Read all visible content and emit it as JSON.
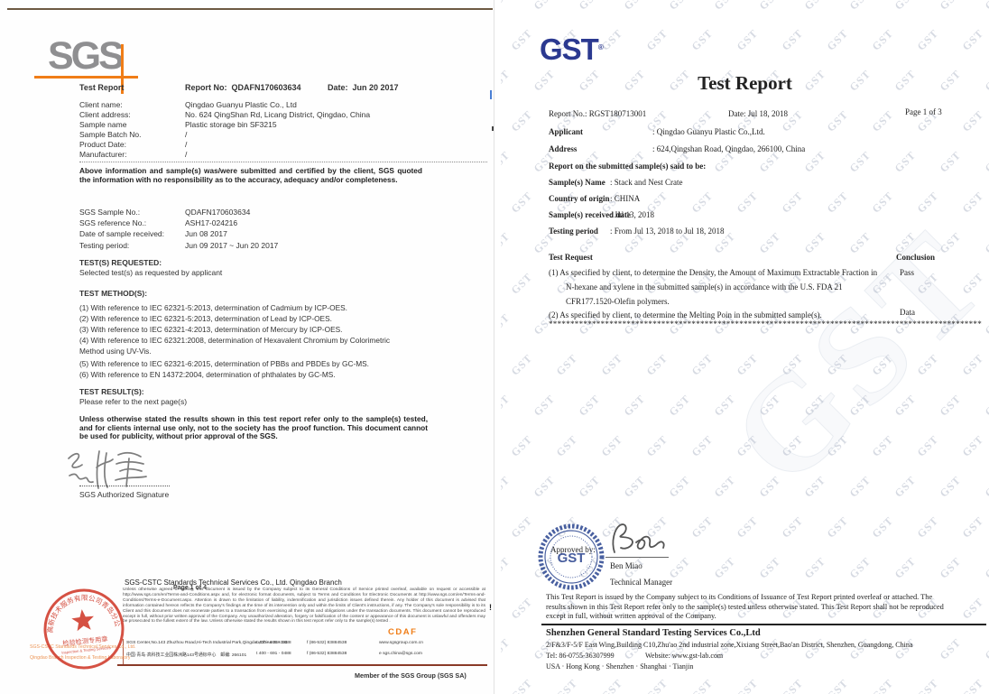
{
  "colors": {
    "sgs_gray": "#8f8f91",
    "sgs_orange": "#f07d17",
    "gst_navy": "#2b3990",
    "stamp_red": "#d03a2a",
    "stamp_blue": "#2a4590"
  },
  "left_report": {
    "logo_text": "SGS",
    "title": "Test Report",
    "report_no_label": "Report No:",
    "report_no": "QDAFN170603634",
    "date_label": "Date:",
    "date_value": "Jun 20 2017",
    "client_rows": [
      {
        "label": "Client name:",
        "value": "Qingdao Guanyu Plastic Co., Ltd"
      },
      {
        "label": "Client address:",
        "value": "No. 624 QingShan Rd, Licang District, Qingdao, China"
      },
      {
        "label": "Sample name",
        "value": "Plastic storage bin SF3215"
      },
      {
        "label": "Sample Batch No.",
        "value": "/"
      },
      {
        "label": "Product Date:",
        "value": "/"
      },
      {
        "label": "Manufacturer:",
        "value": "/"
      }
    ],
    "submission_note": "Above information and sample(s) was/were submitted and certified by the client, SGS quoted the information with no responsibility as to the accuracy, adequacy and/or completeness.",
    "sample_rows": [
      {
        "label": "SGS Sample No.:",
        "value": "QDAFN170603634"
      },
      {
        "label": "SGS reference No.:",
        "value": "ASH17-024216"
      },
      {
        "label": "Date of sample received:",
        "value": "Jun 08 2017"
      },
      {
        "label": "Testing period:",
        "value": "Jun 09 2017 ~ Jun 20 2017"
      }
    ],
    "tests_requested_heading": "TEST(S) REQUESTED:",
    "tests_requested_body": "Selected test(s) as requested by applicant",
    "test_method_heading": "TEST METHOD(S):",
    "method_lines": [
      "(1) With reference to IEC 62321-5:2013, determination of Cadmium by ICP-OES.",
      "(2) With reference to IEC 62321-5:2013, determination of Lead by ICP-OES.",
      "(3) With reference to IEC 62321-4:2013, determination of Mercury by ICP-OES.",
      "(4) With reference to IEC 62321:2008, determination of Hexavalent Chromium by Colorimetric",
      "Method using UV-Vis.",
      "(5) With reference to IEC 62321-6:2015, determination of PBBs and PBDEs by GC-MS.",
      "(6) With reference to EN 14372:2004, determination of phthalates by GC-MS."
    ],
    "test_result_heading": "TEST RESULT(S):",
    "test_result_body": "Please refer to the next page(s)",
    "statement": "Unless otherwise stated the results shown in this test report refer only to the sample(s) tested, and for clients internal use only, not to the society has the proof function. This document cannot be used for publicity, without prior approval of the SGS.",
    "signature_caption": "SGS Authorized Signature",
    "stamp": {
      "ring_text": "高新技术服务有限公司青岛分公司",
      "banner": "检验检测专用章",
      "subtitle": "Inspection & Testing Services"
    },
    "footer": {
      "company": "SGS-CSTC Standards Technical Services Co., Ltd. Qingdao Branch",
      "page_overlay": "Page 1 of 4",
      "terms": "Unless otherwise agreed in writing, this document is issued by the Company subject to its General Conditions of Service printed overleaf, available on request or accessible at http://www.sgs.com/en/Terms-and-Conditions.aspx and, for electronic format documents, subject to Terms and Conditions for Electronic Documents at http://www.sgs.com/en/Terms-and-Conditions/Terms-e-Document.aspx. Attention is drawn to the limitation of liability, indemnification and jurisdiction issues defined therein. Any holder of this document is advised that information contained hereon reflects the Company's findings at the time of its intervention only and within the limits of Client's instructions, if any. The Company's sole responsibility is to its Client and this document does not exonerate parties to a transaction from exercising all their rights and obligations under the transaction documents. This document cannot be reproduced except in full, without prior written approval of the Company. Any unauthorized alteration, forgery or falsification of the content or appearance of this document is unlawful and offenders may be prosecuted to the fullest extent of the law. Unless otherwise stated the results shown in this test report refer only to the sample(s) tested .",
      "code": "CDAF",
      "address_en": "SGS Center,No.143 Zhuzhou Road,Hi-Tech Industrial Park,Qingdao,China  266101",
      "address_cn": "中国·青岛·高科技工业园株洲路143号通标中心　邮编: 266101",
      "phone": "t 400 - 691 - 0488",
      "fax": "f (86-532) 83884538",
      "web": "www.sgsgroup.com.cn",
      "email": "e sgs.china@sgs.com",
      "stamp_company_line1": "SGS-CSTC Standards Technical Services Co., Ltd.",
      "stamp_company_line2": "Qingdao Branch Inspection & Testing Laboratory",
      "member_line": "Member of the SGS Group (SGS SA)"
    },
    "edge_artifact": "!"
  },
  "right_report": {
    "logo_text": "GST",
    "logo_reg": "®",
    "watermark_text": "GST",
    "title": "Test Report",
    "report_no_label": "Report No.:",
    "report_no": "RGST180713001",
    "date_label": "Date:",
    "date_value": "Jul  18,  2018",
    "page_label": "Page 1 of 3",
    "info_rows": [
      {
        "label": "Applicant",
        "value": ": Qingdao Guanyu Plastic Co.,Ltd."
      },
      {
        "label": "Address",
        "value": ": 624,Qingshan Road, Qingdao, 266100, China"
      }
    ],
    "said_to_be": "Report on the submitted sample(s) said to be:",
    "sample_rows": [
      {
        "label": "Sample(s) Name",
        "value": ": Stack and Nest Crate"
      },
      {
        "label": "Country of origin",
        "value": ": CHINA"
      },
      {
        "label": "Sample(s) received date",
        "value": ": Jul 13, 2018"
      },
      {
        "label": "Testing period",
        "value": ": From Jul 13, 2018 to Jul 18, 2018"
      }
    ],
    "test_request_heading": "Test Request",
    "conclusion_heading": "Conclusion",
    "requests": [
      {
        "lines": [
          "(1)   As specified by client, to determine the Density, the Amount of Maximum Extractable Fraction in",
          "N-hexane and xylene in the submitted sample(s) in accordance with the U.S. FDA 21",
          "CFR177.1520-Olefin polymers."
        ],
        "conclusion": "Pass"
      },
      {
        "lines": [
          "(2)   As specified by client, to determine the Melting Poin in the submitted sample(s)."
        ],
        "conclusion": "Data"
      }
    ],
    "asterisk_row": "****************************************************************************************************",
    "approved_by": "Approved by:",
    "signer_name": "Ben Miao",
    "signer_title": "Technical Manager",
    "stamp_text": "GST",
    "report_conditions": "This Test Report is issued by the Company subject to its Conditions of Issuance of Test Report printed overleaf or attached. The results shown in this Test Report refer only to the sample(s) tested unless otherwise stated. This Test Report shall not be reproduced except in full, without written approval of the Company.",
    "footer": {
      "company": "Shenzhen General Standard Testing Services Co.,Ltd",
      "address": "2/F&3/F-5/F East Wing,Building C10,Zhu'ao 2nd industrial zone,Xixiang Street,Bao'an District, Shenzhen, Guangdong, China",
      "tel": "Tel: 86-0755-36307999",
      "website": "Website: www.gst-lab.com",
      "cities": "USA · Hong Kong · Shenzhen · Shanghai · Tianjin"
    }
  }
}
